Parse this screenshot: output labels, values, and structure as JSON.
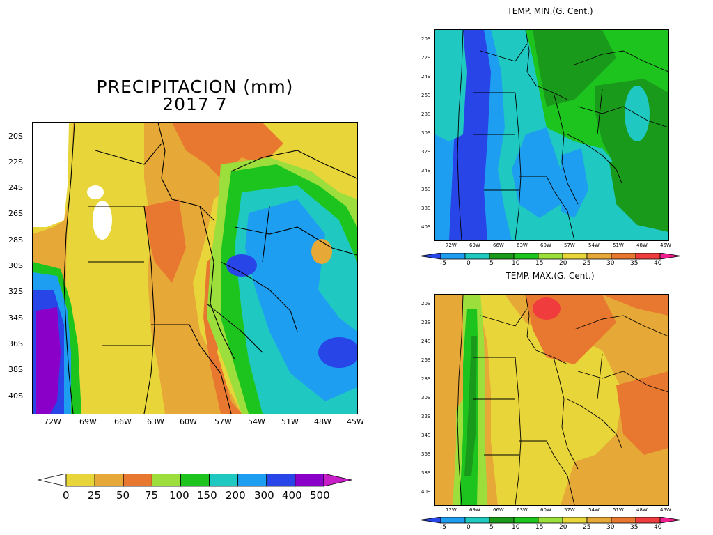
{
  "precip": {
    "title_line1": "PRECIPITACION (mm)",
    "title_line2": "2017   7",
    "lat_labels": [
      "20S",
      "22S",
      "24S",
      "26S",
      "28S",
      "30S",
      "32S",
      "34S",
      "36S",
      "38S",
      "40S"
    ],
    "lon_labels": [
      "72W",
      "69W",
      "66W",
      "63W",
      "60W",
      "57W",
      "54W",
      "51W",
      "48W",
      "45W"
    ],
    "colorbar_labels": [
      "0",
      "25",
      "50",
      "75",
      "100",
      "150",
      "200",
      "300",
      "400",
      "500"
    ],
    "colorbar_colors": [
      "#ffffff",
      "#e8d53a",
      "#e6a836",
      "#e8782f",
      "#9cde3c",
      "#1ec41e",
      "#1fc8c0",
      "#1e9ef0",
      "#2845e8",
      "#8a00c8",
      "#c81ec8"
    ]
  },
  "tmin": {
    "title": "TEMP. MIN.(G. Cent.)",
    "lat_labels": [
      "20S",
      "22S",
      "24S",
      "26S",
      "28S",
      "30S",
      "32S",
      "34S",
      "36S",
      "38S",
      "40S"
    ],
    "lon_labels": [
      "72W",
      "69W",
      "66W",
      "63W",
      "60W",
      "57W",
      "54W",
      "51W",
      "48W",
      "45W"
    ],
    "colorbar_labels": [
      "-5",
      "0",
      "5",
      "10",
      "15",
      "20",
      "25",
      "30",
      "35",
      "40"
    ],
    "colorbar_colors": [
      "#2845e8",
      "#1e9ef0",
      "#1fc8c0",
      "#1a9a1a",
      "#1ec41e",
      "#9cde3c",
      "#e8d53a",
      "#e6a836",
      "#e8782f",
      "#f03c3c",
      "#f01e8c"
    ]
  },
  "tmax": {
    "title": "TEMP. MAX.(G. Cent.)",
    "lat_labels": [
      "20S",
      "22S",
      "24S",
      "26S",
      "28S",
      "30S",
      "32S",
      "34S",
      "36S",
      "38S",
      "40S"
    ],
    "lon_labels": [
      "72W",
      "69W",
      "66W",
      "63W",
      "60W",
      "57W",
      "54W",
      "51W",
      "48W",
      "45W"
    ],
    "colorbar_labels": [
      "-5",
      "0",
      "5",
      "10",
      "15",
      "20",
      "25",
      "30",
      "35",
      "40"
    ],
    "colorbar_colors": [
      "#2845e8",
      "#1e9ef0",
      "#1fc8c0",
      "#1a9a1a",
      "#1ec41e",
      "#9cde3c",
      "#e8d53a",
      "#e6a836",
      "#e8782f",
      "#f03c3c",
      "#f01e8c"
    ]
  }
}
